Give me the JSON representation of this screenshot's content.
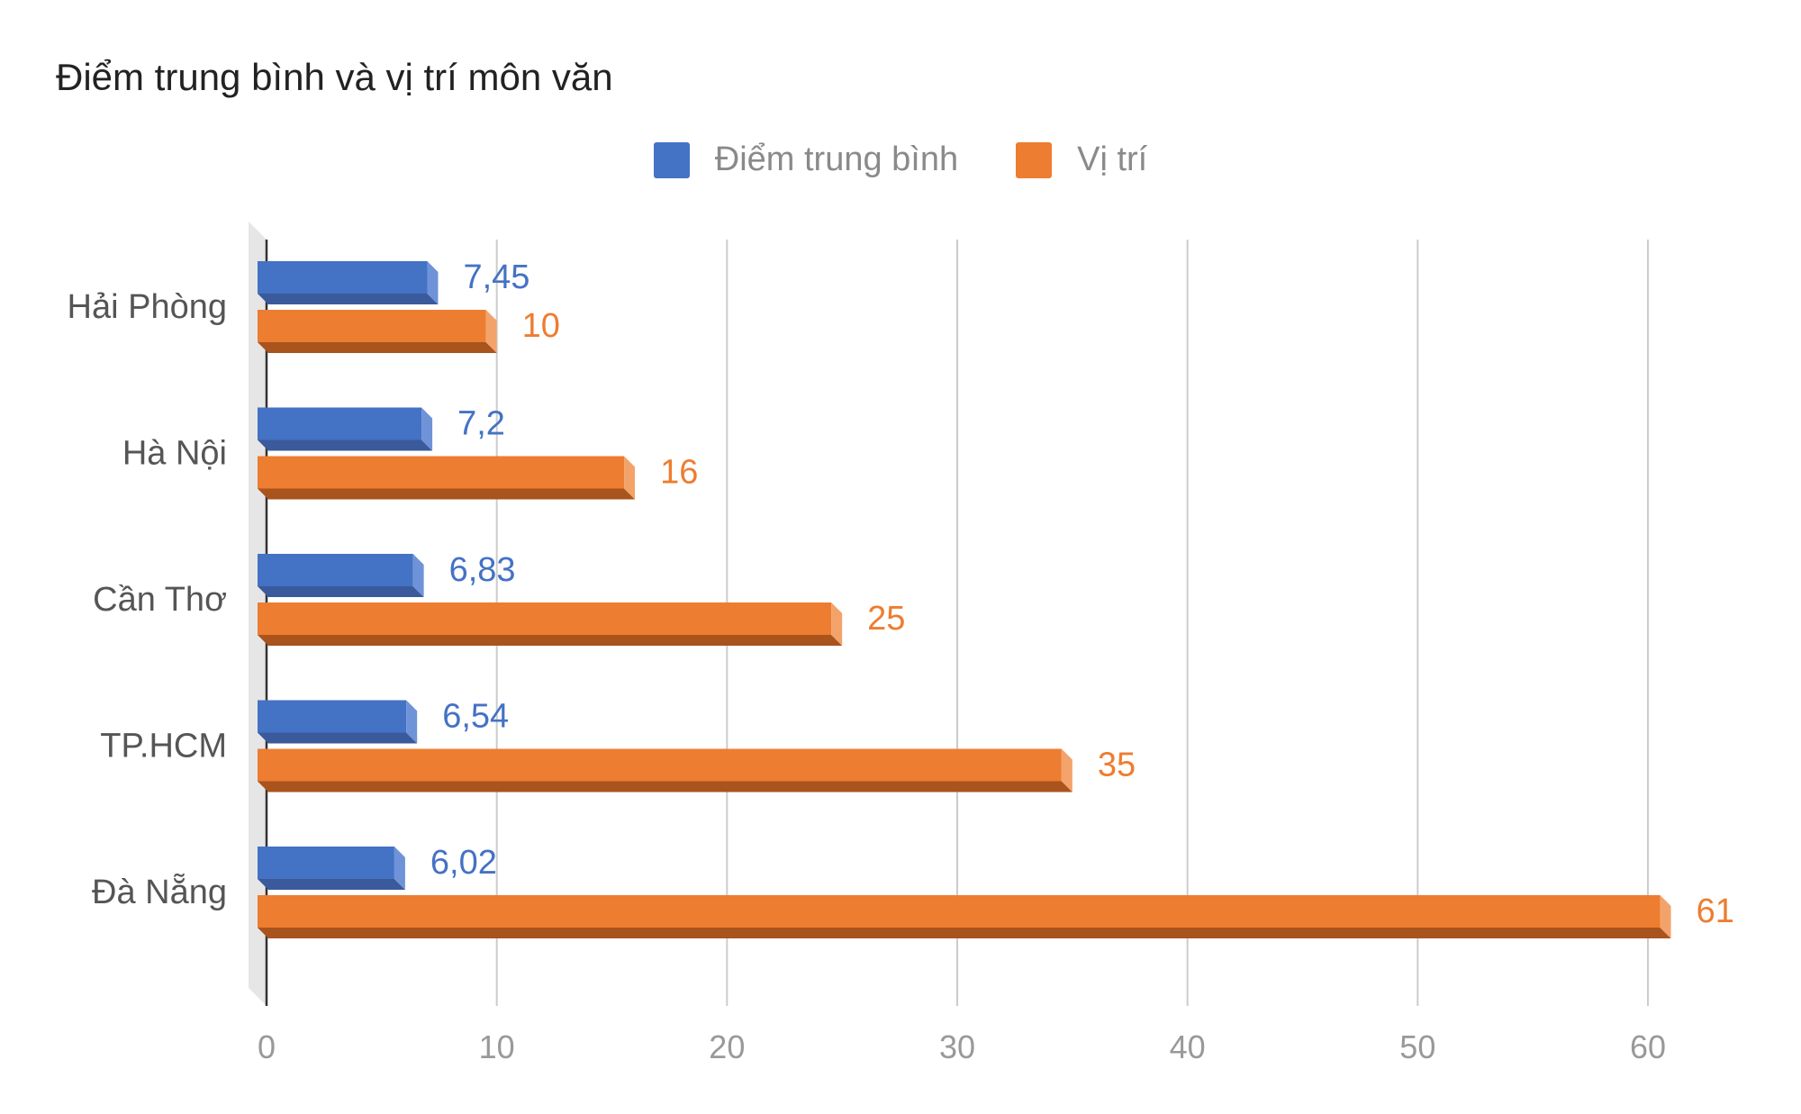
{
  "chart_data": {
    "type": "bar",
    "orientation": "horizontal",
    "title": "Điểm trung bình và vị trí môn văn",
    "categories": [
      "Hải Phòng",
      "Hà Nội",
      "Cần Thơ",
      "TP.HCM",
      "Đà Nẵng"
    ],
    "series": [
      {
        "name": "Điểm trung bình",
        "values": [
          7.45,
          7.2,
          6.83,
          6.54,
          6.02
        ],
        "labels": [
          "7,45",
          "7,2",
          "6,83",
          "6,54",
          "6,02"
        ],
        "color": "#4472c4",
        "shade": "#3a5a9c",
        "side": "#6f93d8"
      },
      {
        "name": "Vị trí",
        "values": [
          10,
          16,
          25,
          35,
          61
        ],
        "labels": [
          "10",
          "16",
          "25",
          "35",
          "61"
        ],
        "color": "#ed7d31",
        "shade": "#a9531d",
        "side": "#f3a36a"
      }
    ],
    "xlim": [
      0,
      60
    ],
    "xticks": [
      0,
      10,
      20,
      30,
      40,
      50,
      60
    ],
    "grid": true,
    "legend_position": "top-center",
    "style": "3d"
  }
}
